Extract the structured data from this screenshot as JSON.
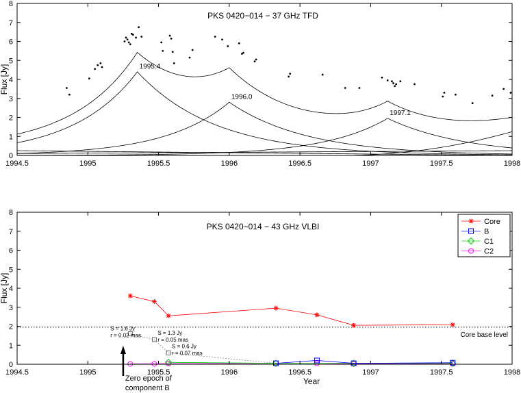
{
  "chart_data": [
    {
      "type": "line",
      "title": "PKS 0420−014 − 37 GHz TFD",
      "xlabel": "",
      "ylabel": "Flux [Jy]",
      "xlim": [
        1994.5,
        1998
      ],
      "ylim": [
        0,
        8
      ],
      "x_ticks": [
        "1994.5",
        "1995",
        "1995.5",
        "1996",
        "1996.5",
        "1997",
        "1997.5",
        "1998"
      ],
      "y_ticks": [
        "0",
        "1",
        "2",
        "3",
        "4",
        "5",
        "6",
        "7",
        "8"
      ],
      "grid": false,
      "observations": [
        [
          1994.85,
          3.55
        ],
        [
          1994.87,
          3.2
        ],
        [
          1995.01,
          4.05
        ],
        [
          1995.05,
          4.55
        ],
        [
          1995.07,
          4.75
        ],
        [
          1995.09,
          4.85
        ],
        [
          1995.1,
          4.65
        ],
        [
          1995.26,
          6.0
        ],
        [
          1995.27,
          6.2
        ],
        [
          1995.28,
          6.1
        ],
        [
          1995.29,
          5.95
        ],
        [
          1995.3,
          5.85
        ],
        [
          1995.31,
          6.4
        ],
        [
          1995.32,
          6.35
        ],
        [
          1995.34,
          6.2
        ],
        [
          1995.36,
          6.75
        ],
        [
          1995.38,
          6.25
        ],
        [
          1995.52,
          5.95
        ],
        [
          1995.53,
          5.5
        ],
        [
          1995.58,
          6.3
        ],
        [
          1995.59,
          6.15
        ],
        [
          1995.6,
          5.45
        ],
        [
          1995.61,
          4.85
        ],
        [
          1995.72,
          5.15
        ],
        [
          1995.74,
          5.55
        ],
        [
          1995.9,
          6.25
        ],
        [
          1995.95,
          6.1
        ],
        [
          1995.99,
          5.75
        ],
        [
          1996.07,
          5.9
        ],
        [
          1996.09,
          5.35
        ],
        [
          1996.1,
          5.4
        ],
        [
          1996.18,
          4.95
        ],
        [
          1996.19,
          5.05
        ],
        [
          1996.42,
          4.15
        ],
        [
          1996.43,
          4.3
        ],
        [
          1996.66,
          4.25
        ],
        [
          1996.82,
          3.55
        ],
        [
          1996.92,
          3.55
        ],
        [
          1997.08,
          4.1
        ],
        [
          1997.12,
          3.95
        ],
        [
          1997.15,
          3.9
        ],
        [
          1997.16,
          3.8
        ],
        [
          1997.17,
          3.65
        ],
        [
          1997.18,
          3.75
        ],
        [
          1997.21,
          3.9
        ],
        [
          1997.31,
          3.75
        ],
        [
          1997.52,
          3.3
        ],
        [
          1997.51,
          3.1
        ],
        [
          1997.6,
          3.2
        ],
        [
          1997.72,
          2.75
        ],
        [
          1997.86,
          3.15
        ],
        [
          1997.94,
          3.5
        ],
        [
          1997.99,
          3.3
        ]
      ],
      "flares": [
        {
          "label": "1995.4",
          "peak_epoch": 1995.35,
          "peak_flux": 4.4
        },
        {
          "label": "1996.0",
          "peak_epoch": 1996.0,
          "peak_flux": 2.8
        },
        {
          "label": "1997.1",
          "peak_epoch": 1997.12,
          "peak_flux": 1.95
        }
      ],
      "baseline_components": [
        {
          "flux_1994_5": 0.25,
          "flux_1998": 0.0
        },
        {
          "flux_1994_5": 0.1,
          "flux_1998": 0.25
        },
        {
          "rising_from": 1996.8,
          "flux_1998": 1.25
        }
      ]
    },
    {
      "type": "line",
      "title": "PKS 0420−014 − 43 GHz VLBI",
      "xlabel": "Year",
      "ylabel": "Flux [Jy]",
      "xlim": [
        1994.5,
        1998
      ],
      "ylim": [
        0,
        8
      ],
      "x_ticks": [
        "1994.5",
        "1995",
        "1995.5",
        "1996",
        "1996.5",
        "1997",
        "1997.5",
        "1998"
      ],
      "y_ticks": [
        "0",
        "1",
        "2",
        "3",
        "4",
        "5",
        "6",
        "7",
        "8"
      ],
      "grid": false,
      "legend_position": "top-right",
      "series": [
        {
          "name": "Core",
          "marker": "asterisk",
          "color": "#ff0000",
          "x": [
            1995.3,
            1995.47,
            1995.57,
            1996.33,
            1996.62,
            1996.88,
            1997.58
          ],
          "y": [
            3.6,
            3.3,
            2.55,
            2.95,
            2.6,
            2.05,
            2.08
          ]
        },
        {
          "name": "B",
          "marker": "square",
          "color": "#0000ff",
          "x": [
            1996.33,
            1996.62,
            1996.88,
            1997.58
          ],
          "y": [
            0.05,
            0.2,
            0.05,
            0.08
          ]
        },
        {
          "name": "C1",
          "marker": "diamond",
          "color": "#00cc00",
          "x": [
            1995.57,
            1996.33,
            1996.88,
            1997.58
          ],
          "y": [
            0.1,
            0.05,
            0.05,
            0.05
          ]
        },
        {
          "name": "C2",
          "marker": "circle",
          "color": "#ff00ff",
          "x": [
            1995.3,
            1995.47,
            1995.57,
            1996.33,
            1996.62,
            1996.88,
            1997.58
          ],
          "y": [
            0.02,
            0.02,
            0.03,
            0.05,
            0.05,
            0.02,
            0.02
          ]
        }
      ],
      "extrapolated_B": {
        "x": [
          1995.3,
          1995.47,
          1995.57,
          1996.33
        ],
        "y": [
          1.6,
          1.3,
          0.6,
          0.05
        ],
        "annotations": [
          {
            "s": "S = 1.6 Jy",
            "r": "r = 0.02 mas"
          },
          {
            "s": "S = 1.3 Jy",
            "r": "r = 0.05 mas"
          },
          {
            "s": "S = 0.6 Jy",
            "r": "r = 0.07 mas"
          }
        ]
      },
      "core_base_level": {
        "y": 1.95,
        "label": "Core base level"
      },
      "zero_epoch": {
        "x": 1995.25,
        "label_line1": "Zero epoch of",
        "label_line2": "component B"
      }
    }
  ]
}
